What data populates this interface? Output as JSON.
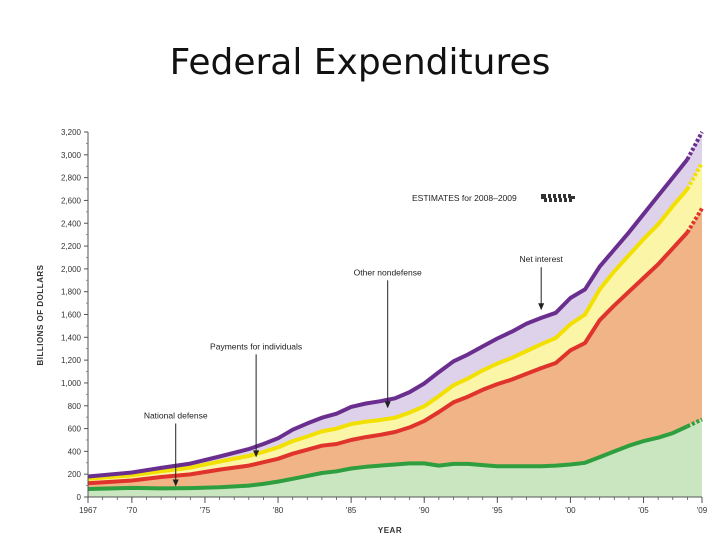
{
  "slide": {
    "title": "Federal Expenditures"
  },
  "chart_data": {
    "type": "area",
    "stacked": true,
    "x": [
      1967,
      1970,
      1972,
      1974,
      1976,
      1978,
      1979,
      1980,
      1981,
      1982,
      1983,
      1984,
      1985,
      1986,
      1987,
      1988,
      1989,
      1990,
      1991,
      1992,
      1993,
      1994,
      1995,
      1996,
      1997,
      1998,
      1999,
      2000,
      2001,
      2002,
      2003,
      2004,
      2005,
      2006,
      2007,
      2008,
      2009
    ],
    "estimate_from": 2008,
    "series": [
      {
        "name": "National defense",
        "color": "#2e9e3e",
        "fill": "#c9e6c1",
        "values": [
          70,
          80,
          75,
          78,
          85,
          100,
          115,
          135,
          160,
          185,
          210,
          225,
          250,
          265,
          275,
          285,
          295,
          295,
          275,
          290,
          290,
          280,
          270,
          270,
          270,
          270,
          275,
          285,
          300,
          350,
          400,
          450,
          490,
          520,
          560,
          620,
          680
        ]
      },
      {
        "name": "Payments for individuals",
        "color": "#e0332b",
        "fill": "#f0b487",
        "values": [
          50,
          65,
          100,
          120,
          155,
          175,
          190,
          200,
          220,
          230,
          240,
          240,
          250,
          260,
          270,
          285,
          315,
          370,
          470,
          540,
          590,
          660,
          720,
          760,
          810,
          860,
          900,
          1000,
          1050,
          1200,
          1280,
          1350,
          1430,
          1520,
          1620,
          1700,
          1850
        ]
      },
      {
        "name": "Other nondefense",
        "color": "#f2e000",
        "fill": "#fbf5a8",
        "values": [
          40,
          45,
          50,
          60,
          70,
          85,
          90,
          100,
          110,
          115,
          125,
          135,
          140,
          135,
          130,
          125,
          130,
          130,
          140,
          150,
          160,
          170,
          180,
          190,
          200,
          210,
          220,
          230,
          250,
          270,
          300,
          320,
          340,
          350,
          370,
          380,
          400
        ]
      },
      {
        "name": "Net interest",
        "color": "#6a2e8f",
        "fill": "#ddd2ea",
        "values": [
          20,
          25,
          30,
          35,
          45,
          60,
          70,
          80,
          100,
          115,
          120,
          130,
          150,
          160,
          165,
          170,
          180,
          200,
          210,
          210,
          210,
          210,
          220,
          230,
          240,
          230,
          220,
          230,
          220,
          200,
          190,
          200,
          220,
          250,
          250,
          260,
          270
        ]
      }
    ],
    "xlabel": "YEAR",
    "ylabel": "BILLIONS OF DOLLARS",
    "ylim": [
      0,
      3200
    ],
    "yticks": [
      "0",
      "200",
      "400",
      "600",
      "800",
      "1,000",
      "1,200",
      "1,400",
      "1,600",
      "1,800",
      "2,000",
      "2,200",
      "2,400",
      "2,600",
      "2,800",
      "3,000",
      "3,200"
    ],
    "xticks": [
      {
        "year": 1967,
        "label": "1967"
      },
      {
        "year": 1970,
        "label": "'70"
      },
      {
        "year": 1975,
        "label": "'75"
      },
      {
        "year": 1980,
        "label": "'80"
      },
      {
        "year": 1985,
        "label": "'85"
      },
      {
        "year": 1990,
        "label": "'90"
      },
      {
        "year": 1995,
        "label": "'95"
      },
      {
        "year": 2000,
        "label": "'00"
      },
      {
        "year": 2005,
        "label": "'05"
      },
      {
        "year": 2009,
        "label": "'09"
      }
    ],
    "xlim": [
      1967,
      2009
    ],
    "estimates_label": "ESTIMATES for 2008–2009",
    "annotations": [
      {
        "text": "National defense",
        "year": 1973,
        "value": 75
      },
      {
        "text": "Payments for individuals",
        "year": 1978.5,
        "value": 330
      },
      {
        "text": "Other nondefense",
        "year": 1987.5,
        "value": 760
      },
      {
        "text": "Net interest",
        "year": 1998,
        "value": 1620
      }
    ]
  }
}
